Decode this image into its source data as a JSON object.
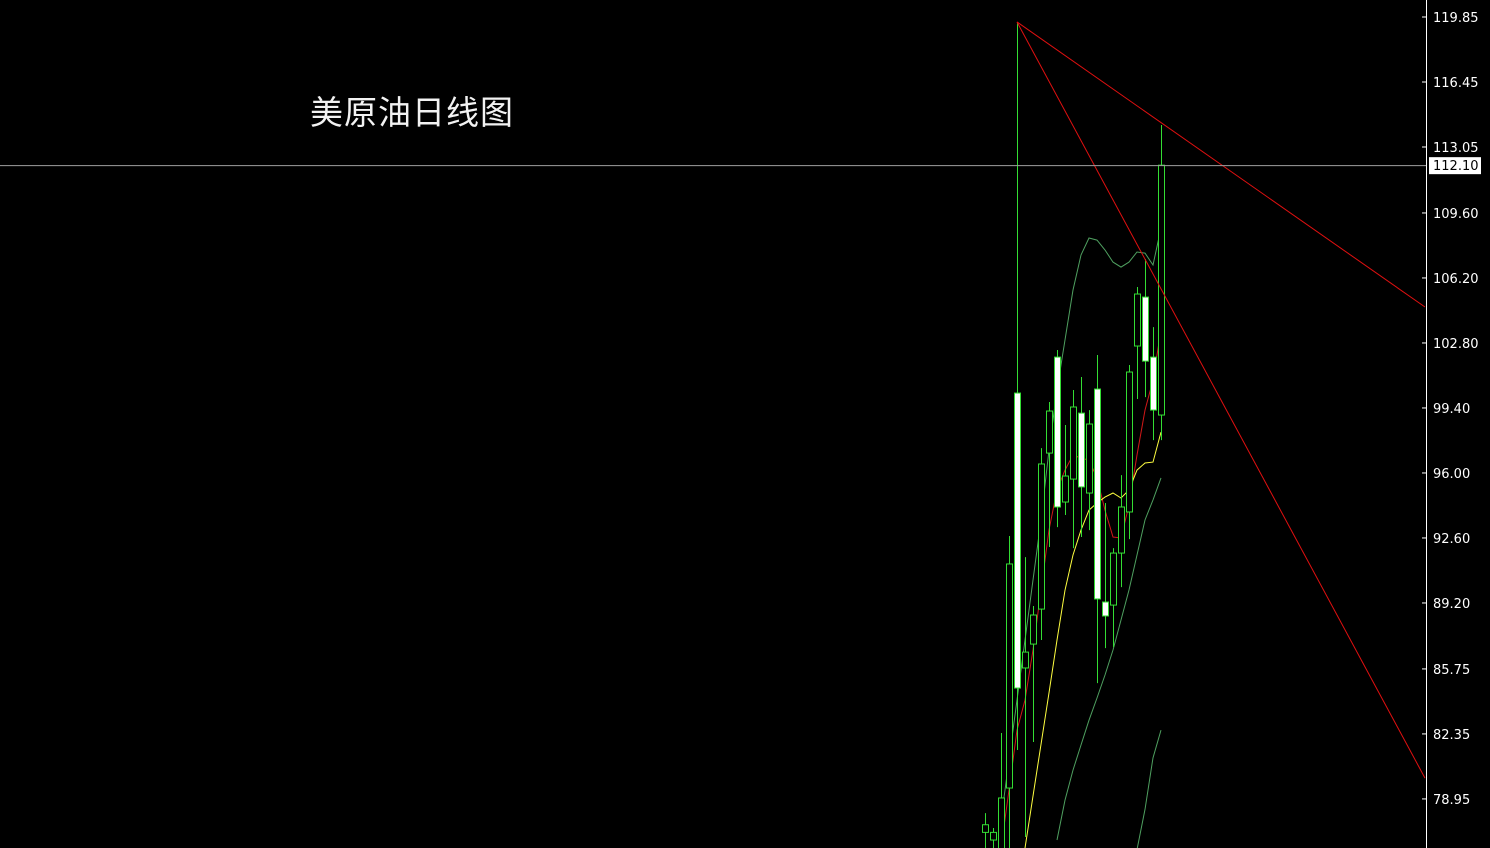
{
  "chart_data": {
    "type": "candlestick",
    "title": "美原油日线图",
    "y_axis": {
      "position": "right",
      "ylim": [
        75.9,
        120.75
      ],
      "ticks": [
        "119.85",
        "116.45",
        "113.05",
        "109.60",
        "106.20",
        "102.80",
        "99.40",
        "96.00",
        "92.60",
        "89.20",
        "85.75",
        "82.35",
        "78.95"
      ],
      "tick_values": [
        119.85,
        116.45,
        113.05,
        109.6,
        106.2,
        102.8,
        99.4,
        96.0,
        92.6,
        89.2,
        85.75,
        82.35,
        78.95
      ]
    },
    "current_price": {
      "label": "112.10",
      "value": 112.1
    },
    "colors": {
      "background": "#000000",
      "candle": "#33dd33",
      "bear_fill": "#ffffff",
      "ma_red": "#d01818",
      "ma_yellow": "#ffff40",
      "band_green": "#4fa060",
      "trendline": "#e01010",
      "price_line": "#a0a0a0"
    },
    "candles": [
      {
        "o": 77.2,
        "h": 78.21,
        "l": 76.3,
        "c": 77.6
      },
      {
        "o": 76.8,
        "h": 77.43,
        "l": 76.3,
        "c": 77.2
      },
      {
        "o": 76.0,
        "h": 82.4,
        "l": 75.5,
        "c": 79.0
      },
      {
        "o": 79.52,
        "h": 92.7,
        "l": 75.8,
        "c": 91.24
      },
      {
        "o": 100.18,
        "h": 119.59,
        "l": 81.51,
        "c": 84.75
      },
      {
        "o": 85.8,
        "h": 91.6,
        "l": 76.96,
        "c": 86.63
      },
      {
        "o": 87.05,
        "h": 89.04,
        "l": 81.93,
        "c": 88.57
      },
      {
        "o": 88.88,
        "h": 97.3,
        "l": 87.26,
        "c": 96.47
      },
      {
        "o": 97.04,
        "h": 99.71,
        "l": 92.13,
        "c": 99.24
      },
      {
        "o": 102.06,
        "h": 102.43,
        "l": 93.17,
        "c": 94.22
      },
      {
        "o": 94.48,
        "h": 98.51,
        "l": 93.8,
        "c": 95.84
      },
      {
        "o": 95.68,
        "h": 100.34,
        "l": 92.07,
        "c": 99.45
      },
      {
        "o": 99.13,
        "h": 101.02,
        "l": 92.65,
        "c": 95.27
      },
      {
        "o": 94.95,
        "h": 99.29,
        "l": 93.01,
        "c": 98.56
      },
      {
        "o": 100.39,
        "h": 102.17,
        "l": 85.01,
        "c": 89.41
      },
      {
        "o": 89.25,
        "h": 94.43,
        "l": 86.84,
        "c": 88.52
      },
      {
        "o": 89.09,
        "h": 92.07,
        "l": 86.89,
        "c": 91.81
      },
      {
        "o": 91.81,
        "h": 95.89,
        "l": 90.03,
        "c": 94.22
      },
      {
        "o": 93.96,
        "h": 101.65,
        "l": 92.54,
        "c": 101.28
      },
      {
        "o": 102.64,
        "h": 105.73,
        "l": 99.87,
        "c": 105.36
      },
      {
        "o": 105.2,
        "h": 107.19,
        "l": 99.97,
        "c": 101.85
      },
      {
        "o": 102.06,
        "h": 103.63,
        "l": 97.72,
        "c": 99.29
      },
      {
        "o": 99.03,
        "h": 114.2,
        "l": 97.72,
        "c": 112.1
      }
    ],
    "indicators": [
      {
        "color": "#d01818",
        "start": 2,
        "values": [
          76.38,
          79.41,
          82.55,
          84.12,
          86.74,
          89.88,
          93.02,
          95.11,
          96.15,
          96.94,
          96.78,
          96.68,
          95.73,
          94.06,
          92.65,
          92.6,
          94.32,
          96.94,
          99.29,
          100.86,
          103.48
        ]
      },
      {
        "color": "#ffff40",
        "start": 5,
        "values": [
          76.38,
          79.1,
          81.8,
          84.5,
          87.26,
          89.87,
          91.71,
          93.01,
          94.06,
          94.43,
          94.74,
          94.95,
          94.69,
          95.11,
          96.15,
          96.52,
          96.57,
          98.14
        ]
      },
      {
        "color": "#4fa060",
        "start": 2,
        "values": [
          77.84,
          80.98,
          84.12,
          87.26,
          90.4,
          93.54,
          97.2,
          100.34,
          102.96,
          105.57,
          107.4,
          108.29,
          108.18,
          107.66,
          107.03,
          106.77,
          107.03,
          107.56,
          107.5,
          106.88,
          108.81
        ]
      },
      {
        "color": "#4fa060",
        "start": 9,
        "values": [
          76.8,
          78.89,
          80.46,
          81.77,
          83.07,
          84.23,
          85.43,
          86.74,
          88.31,
          89.88,
          91.71,
          93.54,
          94.59,
          95.74
        ]
      },
      {
        "color": "#4fa060",
        "start": 19,
        "values": [
          76.3,
          78.4,
          81.1,
          82.55
        ]
      }
    ],
    "trendlines": [
      {
        "from": {
          "i": 4,
          "p": 119.59
        },
        "to": {
          "i": 55,
          "p": 104.68
        }
      },
      {
        "from": {
          "i": 4,
          "p": 119.59
        },
        "to": {
          "i": 55,
          "p": 80.04
        }
      }
    ]
  }
}
